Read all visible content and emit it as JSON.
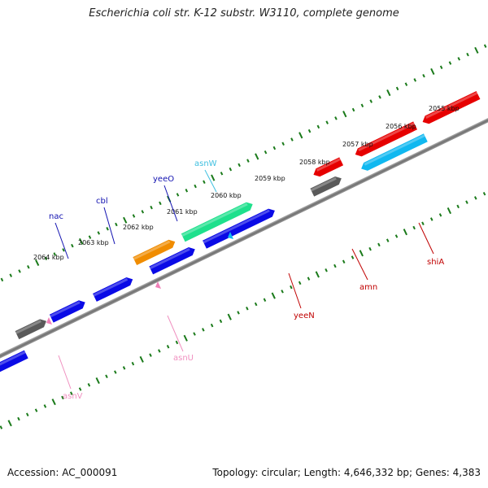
{
  "title": "Escherichia coli str. K-12 substr. W3110, complete genome",
  "footer": {
    "accession": "Accession: AC_000091",
    "summary": "Topology: circular; Length: 4,646,332 bp; Genes: 4,383"
  },
  "colors": {
    "tick": "#1a7a1a",
    "backbone": "#808080",
    "gray_gene": "#5a5a5a",
    "blue_gene": "#0a0ae6",
    "orange_gene": "#f08c00",
    "teal_gene": "#1ee08c",
    "red_gene": "#e60000",
    "cyan_gene": "#10b8f0",
    "pink_gene": "#f080b8",
    "label_blue": "#1010b0",
    "label_cyan": "#40c0e0",
    "label_red": "#c00000",
    "label_pink": "#f090c0"
  },
  "kbp_labels": [
    "2055 kbp",
    "2056 kbp",
    "2057 kbp",
    "2058 kbp",
    "2059 kbp",
    "2060 kbp",
    "2061 kbp",
    "2062 kbp",
    "2063 kbp",
    "2064 kbp"
  ],
  "gene_labels": [
    {
      "text": "yeeO",
      "color": "label_blue"
    },
    {
      "text": "cbl",
      "color": "label_blue"
    },
    {
      "text": "nac",
      "color": "label_blue"
    },
    {
      "text": "asnW",
      "color": "label_cyan"
    },
    {
      "text": "asnU",
      "color": "label_pink"
    },
    {
      "text": "asnV",
      "color": "label_pink"
    },
    {
      "text": "yeeN",
      "color": "label_red"
    },
    {
      "text": "amn",
      "color": "label_red"
    },
    {
      "text": "shiA",
      "color": "label_red"
    }
  ]
}
